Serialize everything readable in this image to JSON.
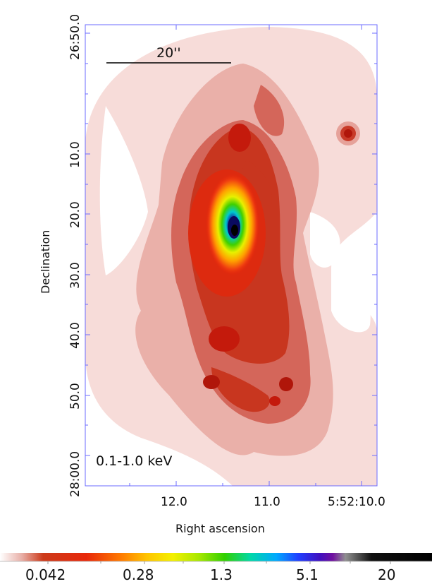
{
  "image": {
    "kind": "X-ray surface-brightness map of an edge-on galaxy",
    "energy_band": "0.1-1.0 keV",
    "scale_bar_label": "20''"
  },
  "axes": {
    "xlabel": "Right ascension",
    "ylabel": "Declination",
    "x_ticks": [
      "12.0",
      "11.0",
      "5:52:10.0"
    ],
    "y_ticks": [
      "26:50.0",
      "10.0",
      "20.0",
      "30.0",
      "40.0",
      "50.0",
      "28:00.0"
    ]
  },
  "colorbar": {
    "labels": [
      "0.042",
      "0.28",
      "1.3",
      "5.1",
      "20"
    ],
    "colors": [
      "#ffffff",
      "#e8b0a8",
      "#cc3a1a",
      "#e8280a",
      "#ff7a00",
      "#ffc400",
      "#f4f000",
      "#a8e800",
      "#30d000",
      "#00d8a8",
      "#00a8ff",
      "#2040ff",
      "#4010c0",
      "#7010a0",
      "#909090",
      "#101010",
      "#000000"
    ]
  },
  "colors": {
    "frame": "#6b6bff",
    "outer_halo": "#f6d9d6",
    "mid_halo": "#e6a29a",
    "inner_halo": "#cf5a4c",
    "core_red": "#c8200e"
  }
}
